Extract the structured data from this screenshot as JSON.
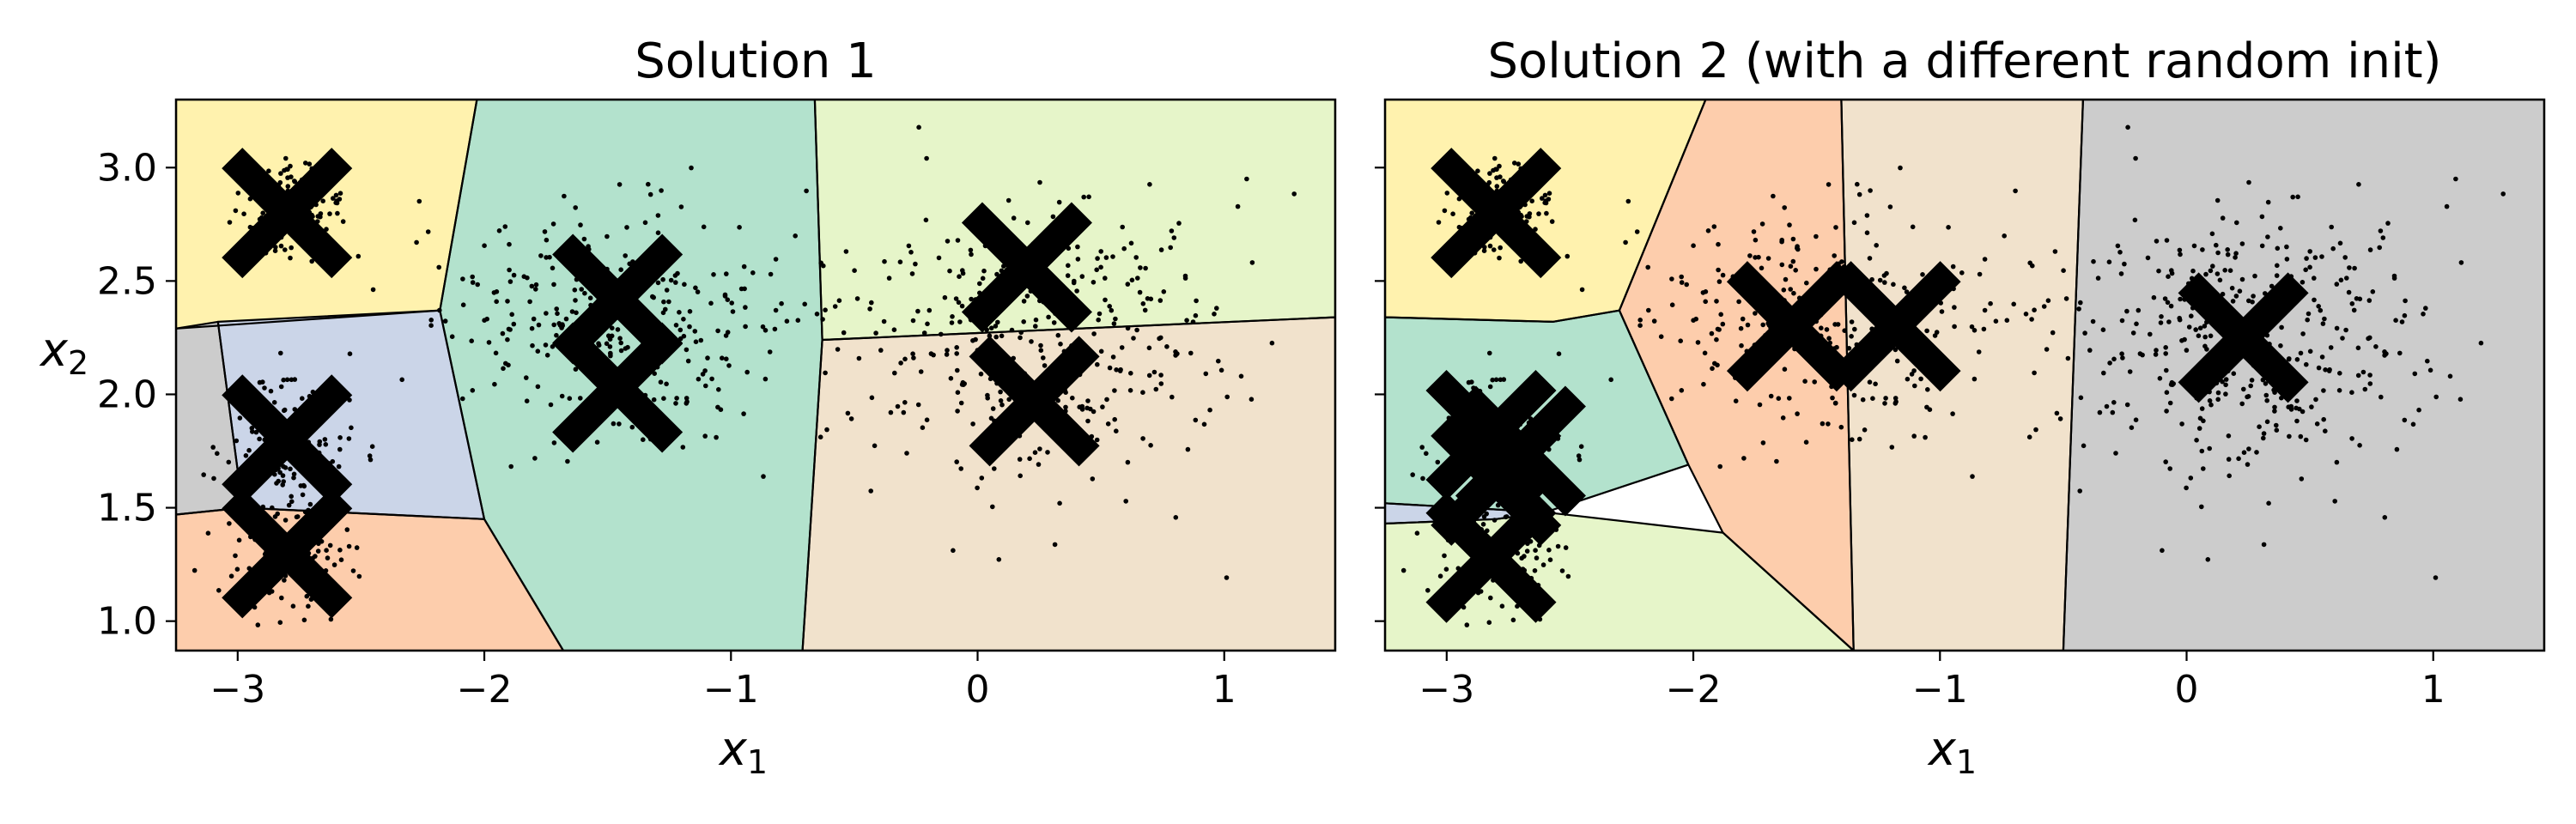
{
  "chart_data": [
    {
      "type": "scatter",
      "title": "Solution 1",
      "xlabel": "x",
      "xlabel_sub": "1",
      "ylabel": "x",
      "ylabel_sub": "2",
      "xlim": [
        -3.25,
        1.45
      ],
      "ylim": [
        0.87,
        3.3
      ],
      "xticks": [
        -3,
        -2,
        -1,
        0,
        1
      ],
      "xtick_labels": [
        "−3",
        "−2",
        "−1",
        "0",
        "1"
      ],
      "yticks": [
        1.0,
        1.5,
        2.0,
        2.5,
        3.0
      ],
      "ytick_labels": [
        "1.0",
        "1.5",
        "2.0",
        "2.5",
        "3.0"
      ],
      "grid": false,
      "centroids": [
        {
          "x": -2.8,
          "y": 2.8
        },
        {
          "x": -2.8,
          "y": 1.8
        },
        {
          "x": -2.8,
          "y": 1.3
        },
        {
          "x": -1.46,
          "y": 2.42
        },
        {
          "x": -1.46,
          "y": 2.03
        },
        {
          "x": 0.2,
          "y": 2.56
        },
        {
          "x": 0.23,
          "y": 1.97
        }
      ],
      "clusters": [
        {
          "center": [
            -2.8,
            2.8
          ],
          "spread": [
            0.1,
            0.1
          ],
          "count": 170
        },
        {
          "center": [
            -2.8,
            1.8
          ],
          "spread": [
            0.13,
            0.14
          ],
          "count": 120
        },
        {
          "center": [
            -2.8,
            1.3
          ],
          "spread": [
            0.13,
            0.13
          ],
          "count": 140
        },
        {
          "center": [
            -1.46,
            2.3
          ],
          "spread": [
            0.36,
            0.27
          ],
          "count": 320
        },
        {
          "center": [
            0.2,
            2.25
          ],
          "spread": [
            0.4,
            0.35
          ],
          "count": 380
        }
      ],
      "regions": [
        {
          "color": "#fff2ae",
          "points": [
            [
              -3.25,
              3.3
            ],
            [
              -2.03,
              3.3
            ],
            [
              -2.18,
              2.37
            ],
            [
              -3.25,
              2.29
            ]
          ]
        },
        {
          "color": "#cccccc",
          "points": [
            [
              -3.25,
              2.29
            ],
            [
              -3.08,
              2.32
            ],
            [
              -2.98,
              1.5
            ],
            [
              -3.25,
              1.47
            ]
          ]
        },
        {
          "color": "#cbd5e8",
          "points": [
            [
              -3.08,
              2.32
            ],
            [
              -2.18,
              2.37
            ],
            [
              -2.0,
              1.45
            ],
            [
              -2.98,
              1.5
            ]
          ]
        },
        {
          "color": "#fdcdac",
          "points": [
            [
              -3.25,
              1.47
            ],
            [
              -2.98,
              1.5
            ],
            [
              -2.0,
              1.45
            ],
            [
              -1.68,
              0.87
            ],
            [
              -3.25,
              0.87
            ]
          ]
        },
        {
          "color": "#b3e2cd",
          "points": [
            [
              -2.03,
              3.3
            ],
            [
              -0.66,
              3.3
            ],
            [
              -0.63,
              2.24
            ],
            [
              -0.71,
              0.87
            ],
            [
              -1.68,
              0.87
            ],
            [
              -2.0,
              1.45
            ],
            [
              -2.18,
              2.37
            ]
          ]
        },
        {
          "color": "#e6f5c9",
          "points": [
            [
              -0.66,
              3.3
            ],
            [
              1.45,
              3.3
            ],
            [
              1.45,
              2.34
            ],
            [
              -0.63,
              2.24
            ]
          ]
        },
        {
          "color": "#f1e2cc",
          "points": [
            [
              -0.63,
              2.24
            ],
            [
              1.45,
              2.34
            ],
            [
              1.45,
              0.87
            ],
            [
              -0.71,
              0.87
            ]
          ]
        }
      ]
    },
    {
      "type": "scatter",
      "title": "Solution 2 (with a different random init)",
      "xlabel": "x",
      "xlabel_sub": "1",
      "ylabel": "",
      "xlim": [
        -3.25,
        1.45
      ],
      "ylim": [
        0.87,
        3.3
      ],
      "xticks": [
        -3,
        -2,
        -1,
        0,
        1
      ],
      "xtick_labels": [
        "−3",
        "−2",
        "−1",
        "0",
        "1"
      ],
      "yticks": [
        1.0,
        1.5,
        2.0,
        2.5,
        3.0
      ],
      "ytick_labels": [],
      "grid": false,
      "centroids": [
        {
          "x": -2.8,
          "y": 2.8
        },
        {
          "x": -2.82,
          "y": 1.82
        },
        {
          "x": -2.7,
          "y": 1.75
        },
        {
          "x": -2.8,
          "y": 1.62
        },
        {
          "x": -2.82,
          "y": 1.28
        },
        {
          "x": -1.6,
          "y": 2.3
        },
        {
          "x": -1.18,
          "y": 2.3
        },
        {
          "x": 0.23,
          "y": 2.25
        }
      ],
      "clusters": [
        {
          "center": [
            -2.8,
            2.8
          ],
          "spread": [
            0.1,
            0.1
          ],
          "count": 170
        },
        {
          "center": [
            -2.8,
            1.8
          ],
          "spread": [
            0.13,
            0.14
          ],
          "count": 120
        },
        {
          "center": [
            -2.8,
            1.3
          ],
          "spread": [
            0.13,
            0.13
          ],
          "count": 140
        },
        {
          "center": [
            -1.46,
            2.3
          ],
          "spread": [
            0.36,
            0.27
          ],
          "count": 320
        },
        {
          "center": [
            0.2,
            2.25
          ],
          "spread": [
            0.4,
            0.35
          ],
          "count": 380
        }
      ],
      "regions": [
        {
          "color": "#fff2ae",
          "points": [
            [
              -3.25,
              3.3
            ],
            [
              -1.95,
              3.3
            ],
            [
              -2.3,
              2.37
            ],
            [
              -2.57,
              2.32
            ],
            [
              -3.25,
              2.34
            ]
          ]
        },
        {
          "color": "#b3e2cd",
          "points": [
            [
              -3.25,
              2.34
            ],
            [
              -2.57,
              2.32
            ],
            [
              -2.3,
              2.37
            ],
            [
              -2.02,
              1.69
            ],
            [
              -2.6,
              1.48
            ],
            [
              -3.25,
              1.52
            ]
          ]
        },
        {
          "color": "#cbd5e8",
          "points": [
            [
              -3.25,
              1.52
            ],
            [
              -2.6,
              1.48
            ],
            [
              -2.8,
              1.45
            ],
            [
              -3.25,
              1.43
            ]
          ]
        },
        {
          "color": "#e6f5c9",
          "points": [
            [
              -3.25,
              1.43
            ],
            [
              -2.8,
              1.45
            ],
            [
              -2.6,
              1.48
            ],
            [
              -1.88,
              1.39
            ],
            [
              -1.35,
              0.87
            ],
            [
              -3.25,
              0.87
            ]
          ]
        },
        {
          "color": "#fdcdac",
          "points": [
            [
              -1.95,
              3.3
            ],
            [
              -1.4,
              3.3
            ],
            [
              -1.35,
              0.87
            ],
            [
              -1.88,
              1.39
            ],
            [
              -2.02,
              1.69
            ],
            [
              -2.3,
              2.37
            ]
          ]
        },
        {
          "color": "#f1e2cc",
          "points": [
            [
              -1.4,
              3.3
            ],
            [
              -0.42,
              3.3
            ],
            [
              -0.5,
              0.87
            ],
            [
              -1.35,
              0.87
            ]
          ]
        },
        {
          "color": "#cccccc",
          "points": [
            [
              -0.42,
              3.3
            ],
            [
              1.45,
              3.3
            ],
            [
              1.45,
              0.87
            ],
            [
              -0.5,
              0.87
            ]
          ]
        }
      ]
    }
  ]
}
